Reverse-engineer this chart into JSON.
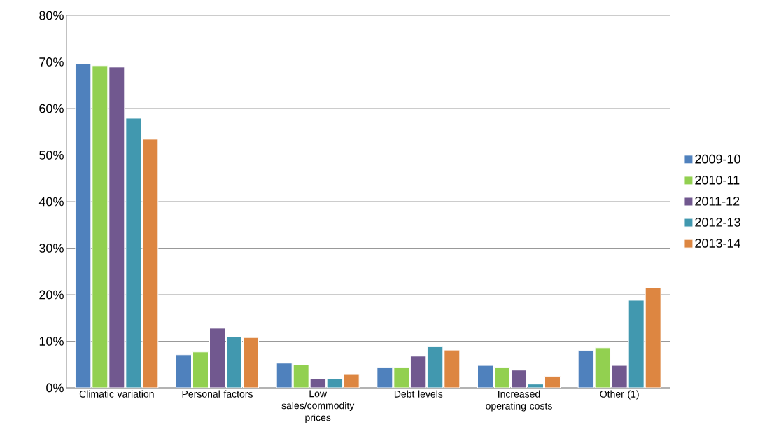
{
  "chart_data": {
    "type": "bar",
    "categories": [
      "Climatic variation",
      "Personal factors",
      "Low sales/commodity prices",
      "Debt levels",
      "Increased operating costs",
      "Other (1)"
    ],
    "series": [
      {
        "name": "2009-10",
        "color": "#4f81bd",
        "values": [
          69.6,
          7.1,
          5.3,
          4.4,
          4.8,
          8.0
        ]
      },
      {
        "name": "2010-11",
        "color": "#92d050",
        "values": [
          69.2,
          7.7,
          4.9,
          4.4,
          4.4,
          8.6
        ]
      },
      {
        "name": "2011-12",
        "color": "#71588f",
        "values": [
          68.9,
          12.8,
          1.9,
          6.8,
          3.8,
          4.8
        ]
      },
      {
        "name": "2012-13",
        "color": "#4198af",
        "values": [
          57.9,
          10.9,
          1.9,
          8.9,
          0.8,
          18.8
        ]
      },
      {
        "name": "2013-14",
        "color": "#dd8641",
        "values": [
          53.4,
          10.8,
          3.0,
          8.1,
          2.5,
          21.5
        ]
      }
    ],
    "ylim": [
      0,
      80
    ],
    "yticks": [
      {
        "value": 0,
        "label": "0%"
      },
      {
        "value": 10,
        "label": "10%"
      },
      {
        "value": 20,
        "label": "20%"
      },
      {
        "value": 30,
        "label": "30%"
      },
      {
        "value": 40,
        "label": "40%"
      },
      {
        "value": 50,
        "label": "50%"
      },
      {
        "value": 60,
        "label": "60%"
      },
      {
        "value": 70,
        "label": "70%"
      },
      {
        "value": 80,
        "label": "80%"
      }
    ],
    "grid": "y",
    "legend": "right"
  }
}
